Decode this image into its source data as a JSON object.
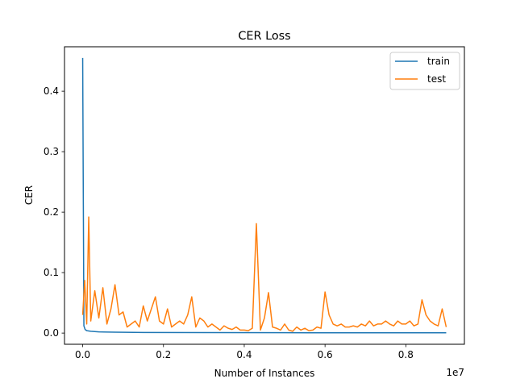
{
  "chart_data": {
    "type": "line",
    "title": "CER Loss",
    "xlabel": "Number of Instances",
    "ylabel": "CER",
    "x_offset_label": "1e7",
    "xlim": [
      -0.045,
      0.945
    ],
    "ylim": [
      -0.0185,
      0.4735
    ],
    "xticks": [
      0.0,
      0.2,
      0.4,
      0.6,
      0.8
    ],
    "xtick_labels": [
      "0.0",
      "0.2",
      "0.4",
      "0.6",
      "0.8"
    ],
    "yticks": [
      0.0,
      0.1,
      0.2,
      0.3,
      0.4
    ],
    "ytick_labels": [
      "0.0",
      "0.1",
      "0.2",
      "0.3",
      "0.4"
    ],
    "grid": false,
    "legend_position": "top-right",
    "series": [
      {
        "name": "train",
        "color": "#1f77b4",
        "x": [
          0.0,
          0.003,
          0.006,
          0.01,
          0.02,
          0.04,
          0.08,
          0.15,
          0.3,
          0.5,
          0.7,
          0.9
        ],
        "y": [
          0.455,
          0.012,
          0.006,
          0.004,
          0.003,
          0.002,
          0.0015,
          0.001,
          0.0008,
          0.0006,
          0.0005,
          0.0005
        ]
      },
      {
        "name": "test",
        "color": "#ff7f0e",
        "x": [
          0.0,
          0.005,
          0.01,
          0.015,
          0.02,
          0.03,
          0.04,
          0.05,
          0.06,
          0.07,
          0.08,
          0.09,
          0.1,
          0.11,
          0.12,
          0.13,
          0.14,
          0.15,
          0.16,
          0.17,
          0.18,
          0.19,
          0.2,
          0.21,
          0.22,
          0.23,
          0.24,
          0.25,
          0.26,
          0.27,
          0.28,
          0.29,
          0.3,
          0.31,
          0.32,
          0.33,
          0.34,
          0.35,
          0.36,
          0.37,
          0.38,
          0.39,
          0.4,
          0.41,
          0.42,
          0.43,
          0.44,
          0.45,
          0.46,
          0.47,
          0.48,
          0.49,
          0.5,
          0.51,
          0.52,
          0.53,
          0.54,
          0.55,
          0.56,
          0.57,
          0.58,
          0.59,
          0.6,
          0.61,
          0.62,
          0.63,
          0.64,
          0.65,
          0.66,
          0.67,
          0.68,
          0.69,
          0.7,
          0.71,
          0.72,
          0.73,
          0.74,
          0.75,
          0.76,
          0.77,
          0.78,
          0.79,
          0.8,
          0.81,
          0.82,
          0.83,
          0.84,
          0.85,
          0.86,
          0.87,
          0.88,
          0.89,
          0.9
        ],
        "y": [
          0.03,
          0.087,
          0.015,
          0.192,
          0.02,
          0.07,
          0.025,
          0.075,
          0.015,
          0.04,
          0.08,
          0.03,
          0.035,
          0.01,
          0.015,
          0.02,
          0.01,
          0.045,
          0.02,
          0.04,
          0.06,
          0.02,
          0.015,
          0.04,
          0.01,
          0.015,
          0.02,
          0.015,
          0.03,
          0.06,
          0.01,
          0.025,
          0.02,
          0.01,
          0.015,
          0.01,
          0.005,
          0.012,
          0.008,
          0.006,
          0.01,
          0.005,
          0.005,
          0.004,
          0.008,
          0.181,
          0.005,
          0.025,
          0.067,
          0.01,
          0.008,
          0.005,
          0.015,
          0.005,
          0.003,
          0.01,
          0.005,
          0.008,
          0.004,
          0.005,
          0.01,
          0.008,
          0.068,
          0.03,
          0.015,
          0.012,
          0.015,
          0.01,
          0.01,
          0.012,
          0.01,
          0.015,
          0.012,
          0.02,
          0.012,
          0.015,
          0.015,
          0.02,
          0.015,
          0.012,
          0.02,
          0.015,
          0.015,
          0.02,
          0.012,
          0.015,
          0.055,
          0.03,
          0.02,
          0.015,
          0.012,
          0.04,
          0.01
        ]
      }
    ]
  }
}
